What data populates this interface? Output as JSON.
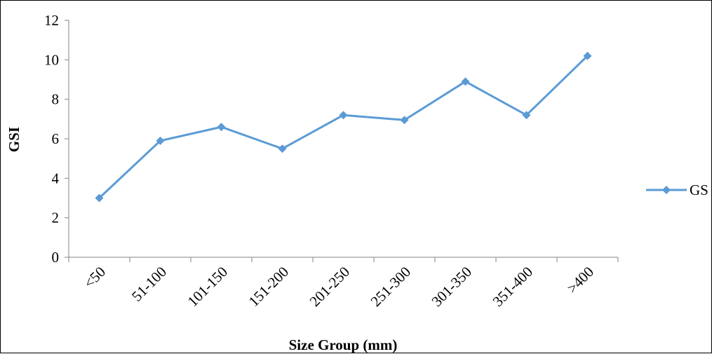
{
  "chart_data": {
    "type": "line",
    "categories": [
      "<50",
      "51-100",
      "101-150",
      "151-200",
      "201-250",
      "251-300",
      "301-350",
      "351-400",
      ">400"
    ],
    "series": [
      {
        "name": "GS",
        "values": [
          3.0,
          5.9,
          6.6,
          5.5,
          7.2,
          6.95,
          8.9,
          7.2,
          10.2
        ],
        "color": "#5b9bd5",
        "marker": "diamond"
      }
    ],
    "title": "",
    "xlabel": "Size Group (mm)",
    "ylabel": "GSI",
    "ylim": [
      0,
      12
    ],
    "yticks": [
      0,
      2,
      4,
      6,
      8,
      10,
      12
    ],
    "grid": false,
    "legend_position": "right"
  }
}
